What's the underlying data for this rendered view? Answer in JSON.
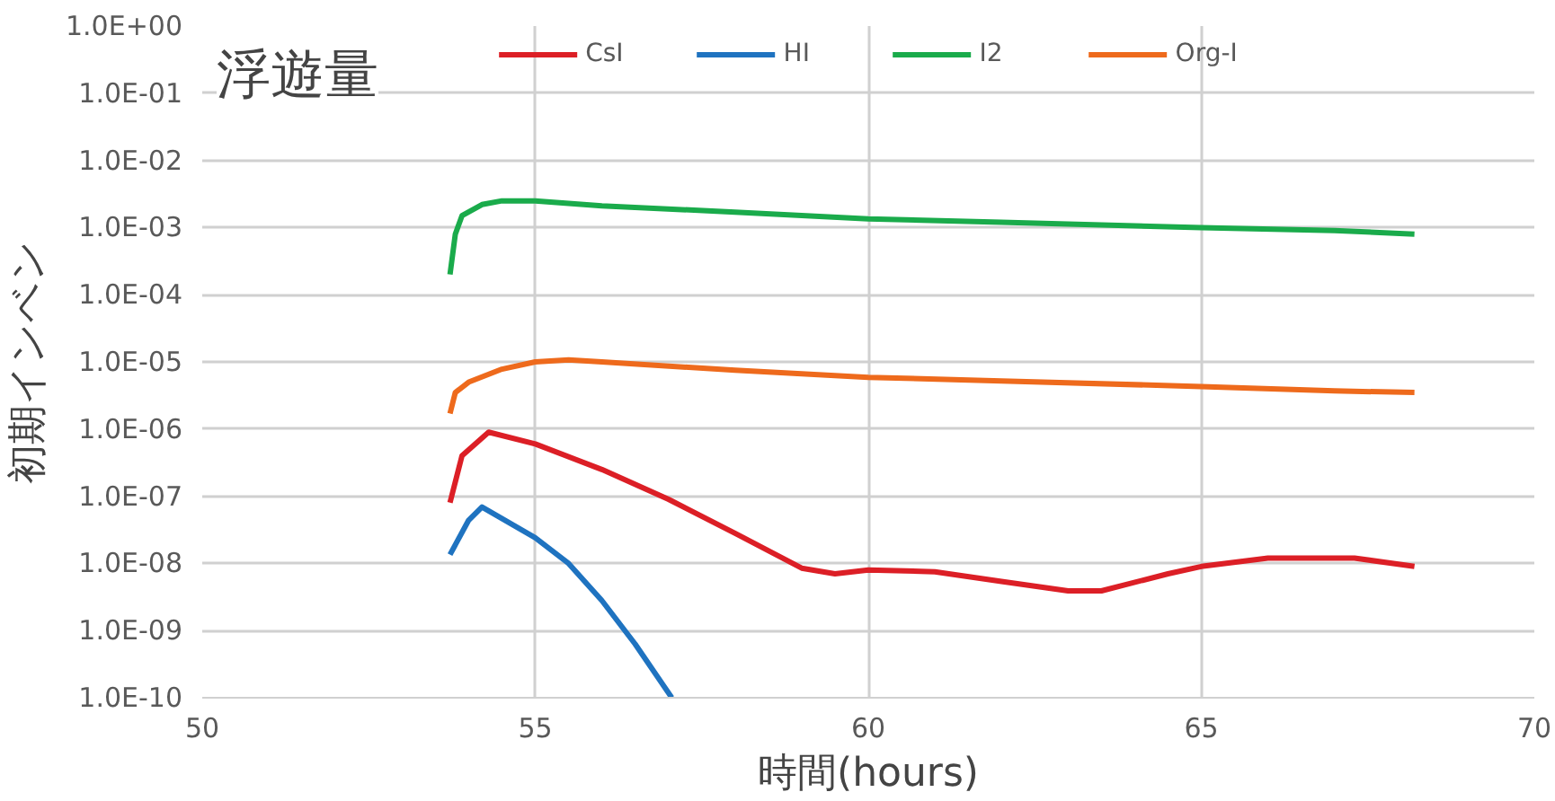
{
  "chart_data": {
    "type": "line",
    "xlabel": "時間(hours)",
    "ylabel": "初期インベン",
    "annotations": [
      "浮遊量"
    ],
    "xlim": [
      50,
      70
    ],
    "xticks": [
      50,
      55,
      60,
      65,
      70
    ],
    "ylim": [
      1e-10,
      1
    ],
    "log": true,
    "yticks": [
      {
        "value": 1e-10,
        "label": "1.0E-10"
      },
      {
        "value": 1e-09,
        "label": "1.0E-09"
      },
      {
        "value": 1e-08,
        "label": "1.0E-08"
      },
      {
        "value": 1e-07,
        "label": "1.0E-07"
      },
      {
        "value": 1e-06,
        "label": "1.0E-06"
      },
      {
        "value": 1e-05,
        "label": "1.0E-05"
      },
      {
        "value": 0.0001,
        "label": "1.0E-04"
      },
      {
        "value": 0.001,
        "label": "1.0E-03"
      },
      {
        "value": 0.01,
        "label": "1.0E-02"
      },
      {
        "value": 0.1,
        "label": "1.0E-01"
      },
      {
        "value": 1,
        "label": "1.0E+00"
      }
    ],
    "grid": true,
    "legend": "top",
    "series": [
      {
        "name": "CsI",
        "color": "#dc1f26",
        "x": [
          53.72,
          53.9,
          54.3,
          55,
          56,
          57,
          58,
          59,
          59.5,
          60,
          61,
          62,
          63,
          63.5,
          64.5,
          65,
          66,
          67.3,
          68.2
        ],
        "values": [
          8e-08,
          4e-07,
          9e-07,
          6e-07,
          2.5e-07,
          9e-08,
          2.8e-08,
          8.5e-09,
          7e-09,
          8e-09,
          7.5e-09,
          5.4e-09,
          3.9e-09,
          3.9e-09,
          7e-09,
          9e-09,
          1.2e-08,
          1.2e-08,
          9e-09
        ]
      },
      {
        "name": "HI",
        "color": "#1f73c0",
        "x": [
          53.72,
          54,
          54.2,
          55,
          55.5,
          56,
          56.5,
          57.05
        ],
        "values": [
          1.35e-08,
          4.4e-08,
          6.9e-08,
          2.4e-08,
          1e-08,
          2.8e-09,
          6.3e-10,
          1e-10
        ]
      },
      {
        "name": "I2",
        "color": "#1aab4b",
        "x": [
          53.72,
          53.8,
          53.9,
          54.2,
          54.5,
          55,
          56,
          58,
          60,
          62,
          65,
          67,
          68.2
        ],
        "values": [
          0.0002,
          0.0008,
          0.0015,
          0.0022,
          0.0025,
          0.0025,
          0.0021,
          0.0017,
          0.00135,
          0.0012,
          0.001,
          0.0009,
          0.0008
        ]
      },
      {
        "name": "Org-I",
        "color": "#ee6a1c",
        "x": [
          53.72,
          53.8,
          54,
          54.5,
          55,
          55.5,
          56,
          58,
          60,
          62,
          65,
          67,
          68.2
        ],
        "values": [
          1.7e-06,
          3.5e-06,
          5e-06,
          7.8e-06,
          1e-05,
          1.07e-05,
          1e-05,
          7.5e-06,
          5.9e-06,
          5.2e-06,
          4.3e-06,
          3.7e-06,
          3.5e-06
        ]
      }
    ]
  }
}
